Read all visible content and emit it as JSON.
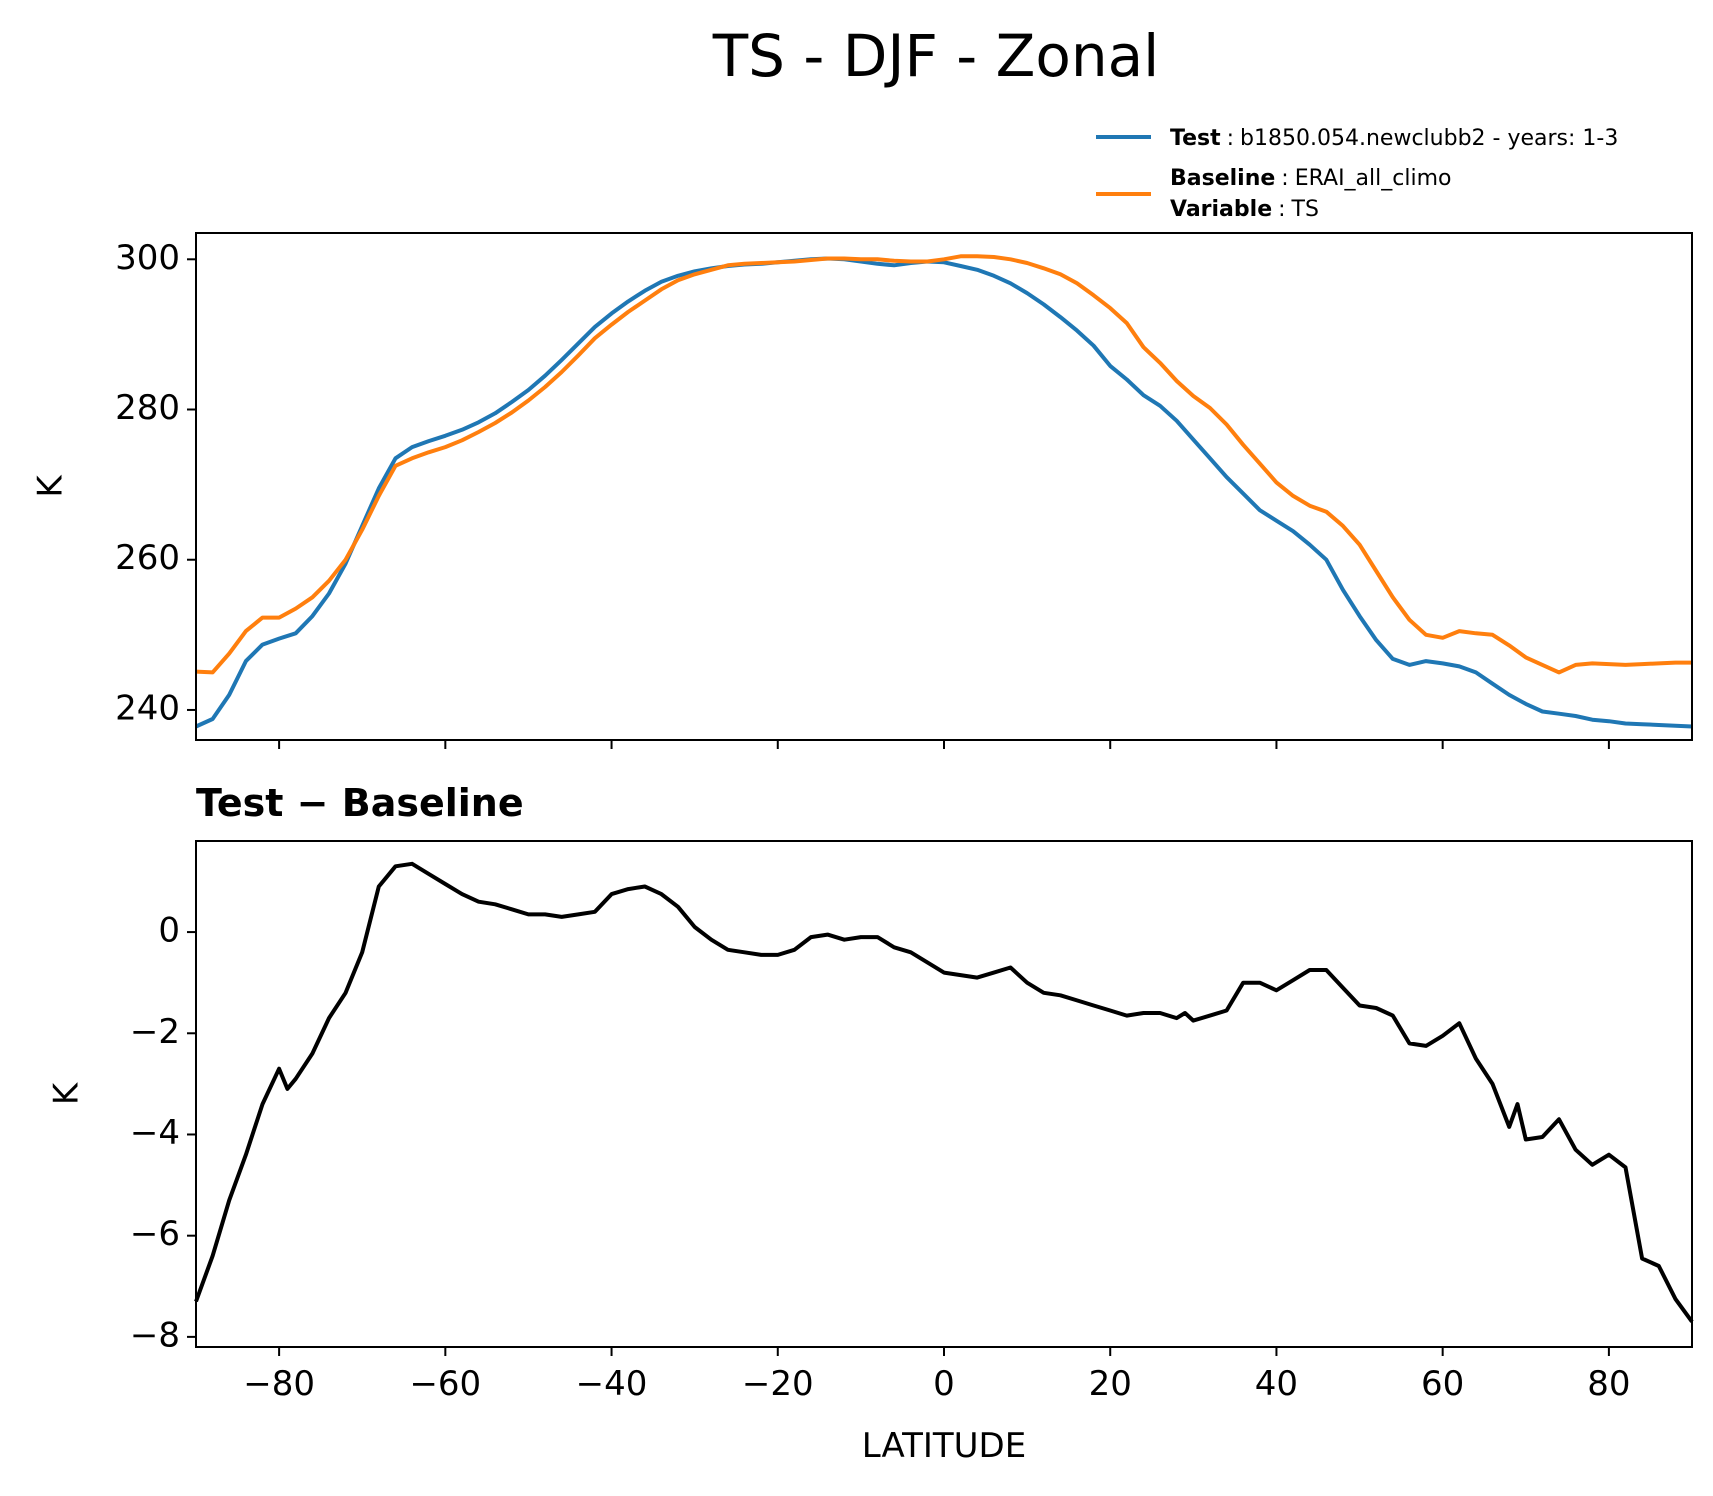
{
  "title": "TS - DJF - Zonal",
  "colors": {
    "test": "#1f77b4",
    "baseline": "#ff7f0e",
    "diff": "#000000"
  },
  "legend": {
    "placement": "above-top-right",
    "entries": [
      {
        "key": "Test",
        "sep": ":",
        "value": "b1850.054.newclubb2 - years: 1-3",
        "series": "test"
      },
      {
        "key": "Baseline",
        "sep": ":",
        "value": "ERAI_all_climo",
        "series": "baseline"
      },
      {
        "key": "Variable",
        "sep": ":",
        "value": "TS",
        "series": null
      }
    ]
  },
  "chart_data": [
    {
      "type": "line",
      "ylabel": "K",
      "xlim": [
        -90,
        90
      ],
      "ylim": [
        236,
        303.5
      ],
      "yticks": [
        240,
        260,
        280,
        300
      ],
      "xticks": [
        -80,
        -60,
        -40,
        -20,
        0,
        20,
        40,
        60,
        80
      ],
      "show_xtick_labels": false,
      "grid": false,
      "x": [
        -90,
        -88,
        -86,
        -84,
        -82,
        -80,
        -78,
        -76,
        -74,
        -72,
        -70,
        -68,
        -66,
        -64,
        -62,
        -60,
        -58,
        -56,
        -54,
        -52,
        -50,
        -48,
        -46,
        -44,
        -42,
        -40,
        -38,
        -36,
        -34,
        -32,
        -30,
        -28,
        -26,
        -24,
        -22,
        -20,
        -18,
        -16,
        -14,
        -12,
        -10,
        -8,
        -6,
        -4,
        -2,
        0,
        2,
        4,
        6,
        8,
        10,
        12,
        14,
        16,
        18,
        20,
        22,
        24,
        26,
        28,
        30,
        32,
        34,
        36,
        38,
        40,
        42,
        44,
        46,
        48,
        50,
        52,
        54,
        56,
        58,
        60,
        62,
        64,
        66,
        68,
        70,
        72,
        74,
        76,
        78,
        80,
        82,
        84,
        86,
        88,
        90
      ],
      "series": [
        {
          "name": "Test",
          "color_key": "test",
          "values": [
            237.8,
            238.8,
            242,
            246.5,
            248.7,
            249.5,
            250.2,
            252.5,
            255.5,
            259.5,
            264.5,
            269.5,
            273.5,
            275,
            275.8,
            276.5,
            277.3,
            278.3,
            279.5,
            281,
            282.6,
            284.5,
            286.6,
            288.8,
            291,
            292.8,
            294.4,
            295.8,
            297,
            297.8,
            298.4,
            298.8,
            299.1,
            299.3,
            299.4,
            299.6,
            299.8,
            300,
            300.1,
            300,
            299.7,
            299.4,
            299.2,
            299.5,
            299.7,
            299.6,
            299.1,
            298.6,
            297.8,
            296.8,
            295.5,
            294,
            292.3,
            290.5,
            288.5,
            285.8,
            284,
            281.9,
            280.5,
            278.5,
            276,
            273.5,
            271,
            268.8,
            266.6,
            265.2,
            263.8,
            262,
            260,
            256,
            252.5,
            249.3,
            246.8,
            246,
            246.5,
            246.2,
            245.8,
            245,
            243.5,
            242,
            240.8,
            239.8,
            239.5,
            239.2,
            238.7,
            238.5,
            238.2,
            238.1,
            238,
            237.9,
            237.8
          ]
        },
        {
          "name": "Baseline",
          "color_key": "baseline",
          "values": [
            245.1,
            245,
            247.5,
            250.5,
            252.3,
            252.3,
            253.5,
            255,
            257.2,
            260,
            264,
            268.5,
            272.5,
            273.5,
            274.3,
            275,
            275.9,
            277,
            278.2,
            279.6,
            281.2,
            283,
            285,
            287.2,
            289.5,
            291.3,
            293,
            294.5,
            296,
            297.2,
            298,
            298.6,
            299.2,
            299.4,
            299.5,
            299.6,
            299.7,
            299.9,
            300.1,
            300.1,
            300,
            300,
            299.8,
            299.7,
            299.7,
            300,
            300.4,
            300.4,
            300.3,
            300,
            299.5,
            298.8,
            298,
            296.8,
            295.2,
            293.5,
            291.5,
            288.3,
            286.2,
            283.8,
            281.8,
            280.2,
            278,
            275.3,
            272.8,
            270.3,
            268.5,
            267.2,
            266.4,
            264.5,
            262,
            258.5,
            255,
            252,
            250,
            249.6,
            250.5,
            250.2,
            250,
            248.6,
            247,
            246,
            245,
            246,
            246.2,
            246.1,
            246,
            246.1,
            246.2,
            246.3,
            246.3
          ]
        }
      ]
    },
    {
      "type": "line",
      "subtitle": "Test − Baseline",
      "xlabel": "LATITUDE",
      "ylabel": "K",
      "xlim": [
        -90,
        90
      ],
      "ylim": [
        -8.2,
        1.8
      ],
      "yticks": [
        -8,
        -6,
        -4,
        -2,
        0
      ],
      "ytick_labels": [
        "−8",
        "−6",
        "−4",
        "−2",
        "0"
      ],
      "xticks": [
        -80,
        -60,
        -40,
        -20,
        0,
        20,
        40,
        60,
        80
      ],
      "xtick_labels": [
        "−80",
        "−60",
        "−40",
        "−20",
        "0",
        "20",
        "40",
        "60",
        "80"
      ],
      "grid": false,
      "x": [
        -90,
        -88,
        -86,
        -84,
        -82,
        -80,
        -79,
        -78,
        -76,
        -74,
        -72,
        -70,
        -68,
        -66,
        -64,
        -62,
        -60,
        -58,
        -56,
        -54,
        -52,
        -50,
        -48,
        -46,
        -44,
        -42,
        -40,
        -38,
        -36,
        -34,
        -32,
        -30,
        -28,
        -26,
        -24,
        -22,
        -20,
        -18,
        -16,
        -14,
        -12,
        -10,
        -8,
        -6,
        -4,
        -2,
        0,
        2,
        4,
        6,
        8,
        10,
        12,
        14,
        16,
        18,
        20,
        22,
        24,
        26,
        28,
        29,
        30,
        32,
        34,
        36,
        38,
        40,
        42,
        44,
        46,
        48,
        50,
        52,
        54,
        56,
        58,
        60,
        62,
        64,
        66,
        68,
        69,
        70,
        72,
        74,
        76,
        78,
        80,
        82,
        84,
        86,
        88,
        90
      ],
      "series": [
        {
          "name": "Test − Baseline",
          "color_key": "diff",
          "values": [
            -7.3,
            -6.4,
            -5.3,
            -4.4,
            -3.4,
            -2.7,
            -3.1,
            -2.9,
            -2.4,
            -1.7,
            -1.2,
            -0.4,
            0.9,
            1.3,
            1.35,
            1.15,
            0.95,
            0.75,
            0.6,
            0.55,
            0.45,
            0.35,
            0.35,
            0.3,
            0.35,
            0.4,
            0.75,
            0.85,
            0.9,
            0.75,
            0.5,
            0.1,
            -0.15,
            -0.35,
            -0.4,
            -0.45,
            -0.45,
            -0.35,
            -0.1,
            -0.05,
            -0.15,
            -0.1,
            -0.1,
            -0.3,
            -0.4,
            -0.6,
            -0.8,
            -0.85,
            -0.9,
            -0.8,
            -0.7,
            -1.0,
            -1.2,
            -1.25,
            -1.35,
            -1.45,
            -1.55,
            -1.65,
            -1.6,
            -1.6,
            -1.7,
            -1.6,
            -1.75,
            -1.65,
            -1.55,
            -1.0,
            -1.0,
            -1.15,
            -0.95,
            -0.75,
            -0.75,
            -1.1,
            -1.45,
            -1.5,
            -1.65,
            -2.2,
            -2.25,
            -2.05,
            -1.8,
            -2.5,
            -3.0,
            -3.85,
            -3.4,
            -4.1,
            -4.05,
            -3.7,
            -4.3,
            -4.6,
            -4.4,
            -4.65,
            -6.45,
            -6.6,
            -7.25,
            -7.7
          ]
        }
      ]
    }
  ]
}
